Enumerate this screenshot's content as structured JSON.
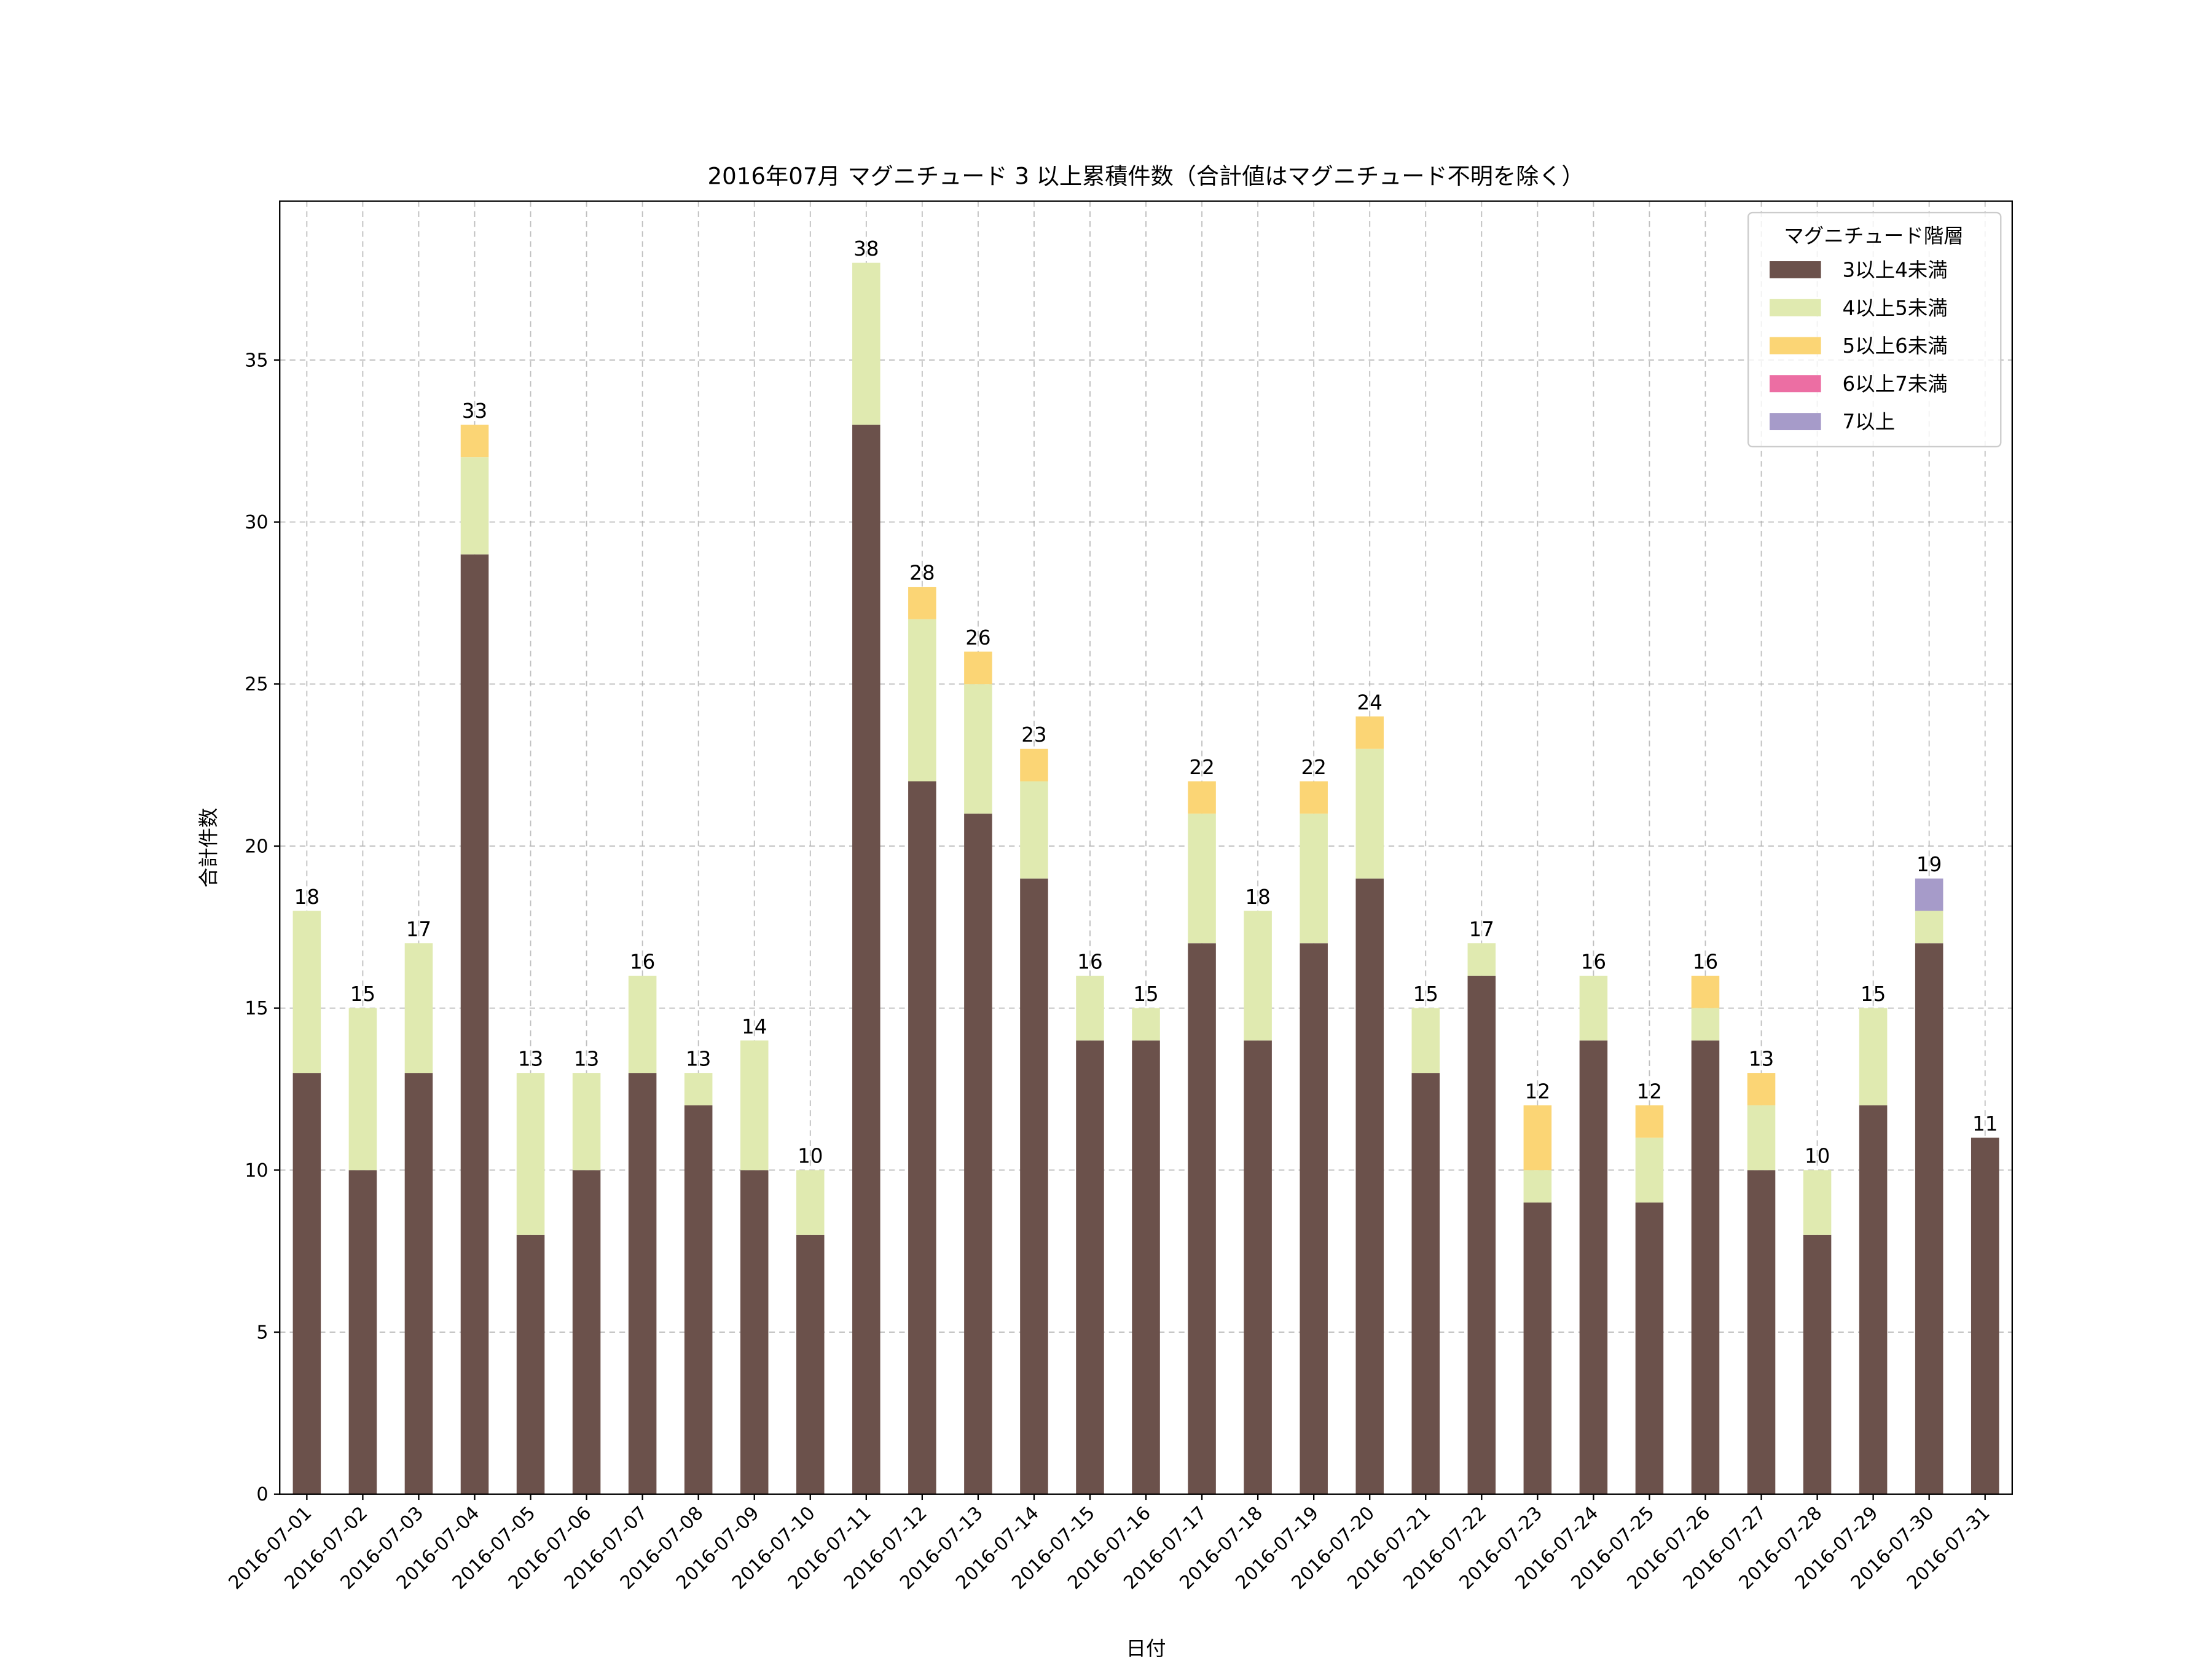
{
  "chart_data": {
    "type": "bar",
    "stacked": true,
    "title": "2016年07月 マグニチュード 3 以上累積件数（合計値はマグニチュード不明を除く）",
    "xlabel": "日付",
    "ylabel": "合計件数",
    "ylim": [
      0,
      39.9
    ],
    "yticks": [
      0,
      5,
      10,
      15,
      20,
      25,
      30,
      35
    ],
    "grid": true,
    "legend": {
      "title": "マグニチュード階層",
      "placement": "top-right"
    },
    "categories": [
      "2016-07-01",
      "2016-07-02",
      "2016-07-03",
      "2016-07-04",
      "2016-07-05",
      "2016-07-06",
      "2016-07-07",
      "2016-07-08",
      "2016-07-09",
      "2016-07-10",
      "2016-07-11",
      "2016-07-12",
      "2016-07-13",
      "2016-07-14",
      "2016-07-15",
      "2016-07-16",
      "2016-07-17",
      "2016-07-18",
      "2016-07-19",
      "2016-07-20",
      "2016-07-21",
      "2016-07-22",
      "2016-07-23",
      "2016-07-24",
      "2016-07-25",
      "2016-07-26",
      "2016-07-27",
      "2016-07-28",
      "2016-07-29",
      "2016-07-30",
      "2016-07-31"
    ],
    "series": [
      {
        "name": "3以上4未満",
        "color": "#6b514b",
        "values": [
          13,
          10,
          13,
          29,
          8,
          10,
          13,
          12,
          10,
          8,
          33,
          22,
          21,
          19,
          14,
          14,
          17,
          14,
          17,
          19,
          13,
          16,
          9,
          14,
          9,
          14,
          10,
          8,
          12,
          17,
          11
        ]
      },
      {
        "name": "4以上5未満",
        "color": "#e0eab0",
        "values": [
          5,
          5,
          4,
          3,
          5,
          3,
          3,
          1,
          4,
          2,
          5,
          5,
          4,
          3,
          2,
          1,
          4,
          4,
          4,
          4,
          2,
          1,
          1,
          2,
          2,
          1,
          2,
          2,
          3,
          1,
          0
        ]
      },
      {
        "name": "5以上6未満",
        "color": "#fbd575",
        "values": [
          0,
          0,
          0,
          1,
          0,
          0,
          0,
          0,
          0,
          0,
          0,
          1,
          1,
          1,
          0,
          0,
          1,
          0,
          1,
          1,
          0,
          0,
          2,
          0,
          1,
          1,
          1,
          0,
          0,
          0,
          0
        ]
      },
      {
        "name": "6以上7未満",
        "color": "#ec6ea3",
        "values": [
          0,
          0,
          0,
          0,
          0,
          0,
          0,
          0,
          0,
          0,
          0,
          0,
          0,
          0,
          0,
          0,
          0,
          0,
          0,
          0,
          0,
          0,
          0,
          0,
          0,
          0,
          0,
          0,
          0,
          0,
          0
        ]
      },
      {
        "name": "7以上",
        "color": "#a69bc9",
        "values": [
          0,
          0,
          0,
          0,
          0,
          0,
          0,
          0,
          0,
          0,
          0,
          0,
          0,
          0,
          0,
          0,
          0,
          0,
          0,
          0,
          0,
          0,
          0,
          0,
          0,
          0,
          0,
          0,
          0,
          1,
          0
        ]
      }
    ],
    "totals": [
      18,
      15,
      17,
      33,
      13,
      13,
      16,
      13,
      14,
      10,
      38,
      28,
      26,
      23,
      16,
      15,
      22,
      18,
      22,
      24,
      15,
      17,
      12,
      16,
      12,
      16,
      13,
      10,
      15,
      19,
      11
    ]
  }
}
